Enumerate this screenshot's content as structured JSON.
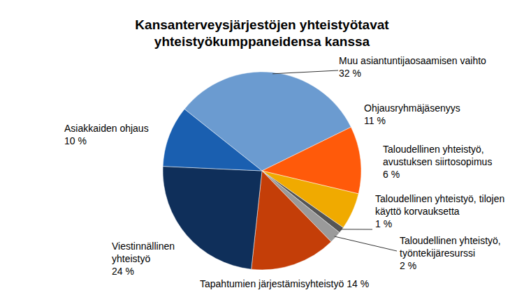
{
  "chart_data": {
    "type": "pie",
    "title": "Kansanterveysjärjestöjen yhteistyötavat yhteistyökumppaneidensa kanssa",
    "categories": [
      "Muu asiantuntijaosaamisen vaihto",
      "Ohjausryhmäjäsenyys",
      "Taloudellinen yhteistyö, avustuksen siirtosopimus",
      "Taloudellinen yhteistyö, tilojen käyttö korvauksetta",
      "Taloudellinen yhteistyö, työntekijäresurssi",
      "Tapahtumien järjestämisyhteistyö",
      "Viestinnällinen yhteistyö",
      "Asiakkaiden ohjaus"
    ],
    "values": [
      32,
      11,
      6,
      1,
      2,
      14,
      24,
      10
    ],
    "value_labels": [
      "32 %",
      "11 %",
      "6 %",
      "1 %",
      "2 %",
      "14 %",
      "24 %",
      "10 %"
    ],
    "colors": [
      "#6b9bd0",
      "#ff5a0a",
      "#f0aa00",
      "#555555",
      "#9a9a9a",
      "#c43e08",
      "#0f2f5a",
      "#1a5fb0"
    ],
    "data_labels": true
  }
}
